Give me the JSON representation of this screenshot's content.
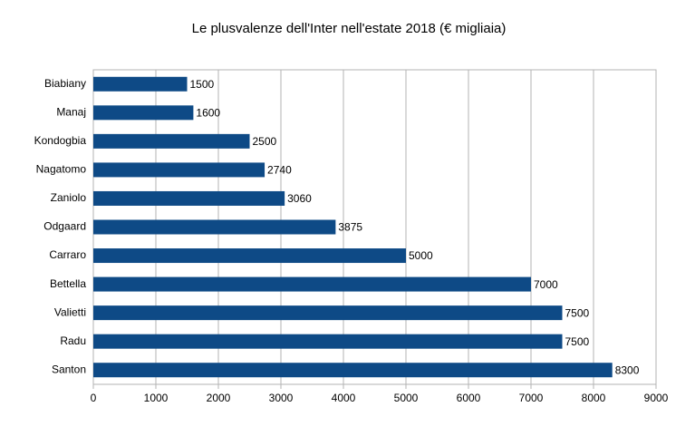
{
  "chart_data": {
    "type": "hbar",
    "title": "Le plusvalenze dell'Inter nell'estate 2018 (€ migliaia)",
    "categories": [
      "Biabiany",
      "Manaj",
      "Kondogbia",
      "Nagatomo",
      "Zaniolo",
      "Odgaard",
      "Carraro",
      "Bettella",
      "Valietti",
      "Radu",
      "Santon"
    ],
    "values": [
      1500,
      1600,
      2500,
      2740,
      3060,
      3875,
      5000,
      7000,
      7500,
      7500,
      8300
    ],
    "color": "#0e4a86",
    "xlim": [
      0,
      9000
    ],
    "xticks": [
      0,
      1000,
      2000,
      3000,
      4000,
      5000,
      6000,
      7000,
      8000,
      9000
    ],
    "grid": true
  }
}
